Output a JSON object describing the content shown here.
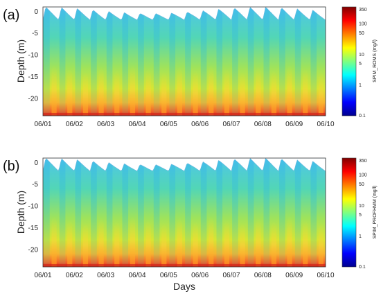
{
  "xlabel": "Days",
  "chart_data": [
    {
      "type": "heatmap",
      "panel_label": "(a)",
      "title": "",
      "xlabel": "",
      "ylabel": "Depth (m)",
      "x_ticks": [
        "06/01",
        "06/02",
        "06/03",
        "06/04",
        "06/05",
        "06/06",
        "06/07",
        "06/08",
        "06/09",
        "06/10"
      ],
      "y_ticks": [
        0,
        -5,
        -10,
        -15,
        -20
      ],
      "ylim": [
        -24,
        1
      ],
      "colorbar": {
        "label": "SPIM_ROMS (mg/l)",
        "scale": "log",
        "range": [
          0.1,
          350
        ],
        "ticks": [
          "350",
          "100",
          "50",
          "10",
          "5",
          "1",
          "0.1"
        ],
        "tick_values": [
          350,
          100,
          50,
          10,
          5,
          1,
          0.1
        ],
        "colormap": "jet"
      },
      "tidal_cycles": 18,
      "surface_range_m": [
        -2,
        1
      ],
      "bottom_m": -24
    },
    {
      "type": "heatmap",
      "panel_label": "(b)",
      "title": "",
      "xlabel": "Days",
      "ylabel": "Depth (m)",
      "x_ticks": [
        "06/01",
        "06/02",
        "06/03",
        "06/04",
        "06/05",
        "06/06",
        "06/07",
        "06/08",
        "06/09",
        "06/10"
      ],
      "y_ticks": [
        0,
        -5,
        -10,
        -15,
        -20
      ],
      "ylim": [
        -24,
        1
      ],
      "colorbar": {
        "label": "SPIM_PROFHMM (mg/l)",
        "scale": "log",
        "range": [
          0.1,
          350
        ],
        "ticks": [
          "350",
          "100",
          "50",
          "10",
          "5",
          "1",
          "0.1"
        ],
        "tick_values": [
          350,
          100,
          50,
          10,
          5,
          1,
          0.1
        ],
        "colormap": "jet"
      },
      "tidal_cycles": 18,
      "surface_range_m": [
        -2,
        1
      ],
      "bottom_m": -24
    }
  ]
}
